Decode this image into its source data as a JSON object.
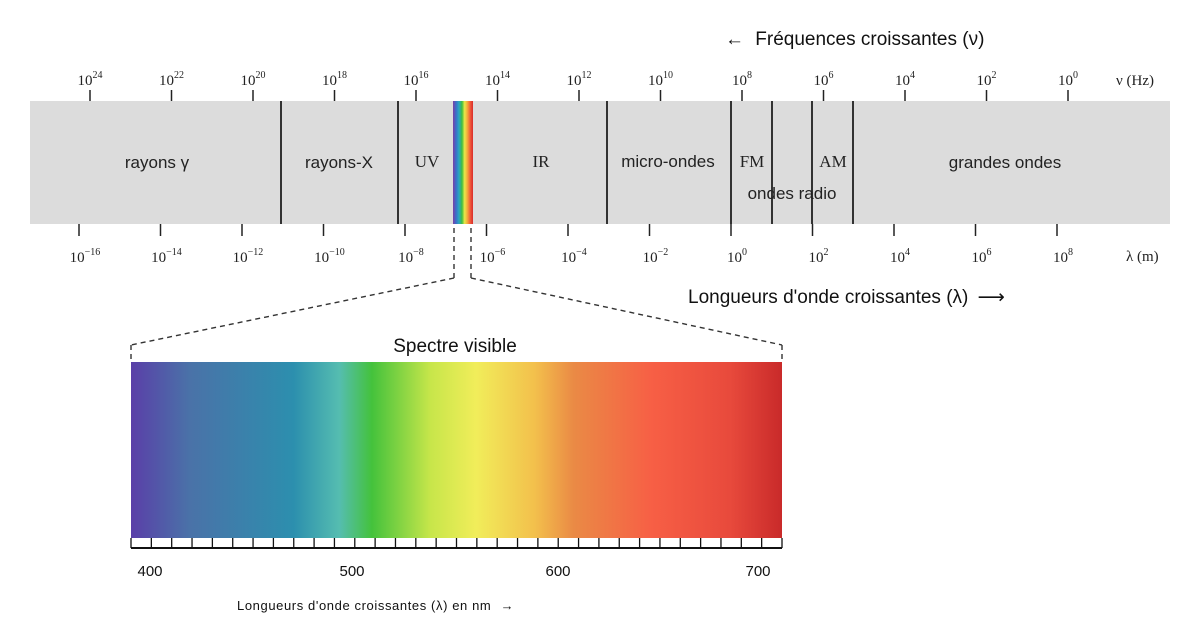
{
  "frequency_axis": {
    "title": "Fréquences croissantes (ν)",
    "arrow": "←",
    "unit_label": "ν (Hz)",
    "ticks": [
      {
        "base": "10",
        "exp": "24"
      },
      {
        "base": "10",
        "exp": "22"
      },
      {
        "base": "10",
        "exp": "20"
      },
      {
        "base": "10",
        "exp": "18"
      },
      {
        "base": "10",
        "exp": "16"
      },
      {
        "base": "10",
        "exp": "14"
      },
      {
        "base": "10",
        "exp": "12"
      },
      {
        "base": "10",
        "exp": "10"
      },
      {
        "base": "10",
        "exp": "8"
      },
      {
        "base": "10",
        "exp": "6"
      },
      {
        "base": "10",
        "exp": "4"
      },
      {
        "base": "10",
        "exp": "2"
      },
      {
        "base": "10",
        "exp": "0"
      }
    ]
  },
  "wavelength_axis": {
    "title": "Longueurs d'onde croissantes (λ)",
    "arrow": "⟶",
    "unit_label": "λ (m)",
    "ticks": [
      {
        "base": "10",
        "exp": "−16"
      },
      {
        "base": "10",
        "exp": "−14"
      },
      {
        "base": "10",
        "exp": "−12"
      },
      {
        "base": "10",
        "exp": "−10"
      },
      {
        "base": "10",
        "exp": "−8"
      },
      {
        "base": "10",
        "exp": "−6"
      },
      {
        "base": "10",
        "exp": "−4"
      },
      {
        "base": "10",
        "exp": "−2"
      },
      {
        "base": "10",
        "exp": "0"
      },
      {
        "base": "10",
        "exp": "2"
      },
      {
        "base": "10",
        "exp": "4"
      },
      {
        "base": "10",
        "exp": "6"
      },
      {
        "base": "10",
        "exp": "8"
      }
    ]
  },
  "bands": {
    "gamma": "rayons γ",
    "xray": "rayons-X",
    "uv": "UV",
    "ir": "IR",
    "micro": "micro-ondes",
    "fm": "FM",
    "am": "AM",
    "radio": "ondes radio",
    "long": "grandes ondes"
  },
  "visible": {
    "title": "Spectre visible",
    "axis_title": "Longueurs d'onde croissantes (λ) en nm",
    "axis_arrow": "→",
    "nm_ticks": [
      "400",
      "500",
      "600",
      "700"
    ],
    "gradient_colors": [
      "#5a3fa8",
      "#4a72a8",
      "#2c8fae",
      "#55bdb0",
      "#44c23c",
      "#c7e64a",
      "#f1ed5a",
      "#f3c04c",
      "#ea8a45",
      "#f75f45",
      "#e84a3c",
      "#c92a2a"
    ]
  },
  "colors": {
    "band_fill": "#dcdcdc",
    "divider": "#333333"
  }
}
